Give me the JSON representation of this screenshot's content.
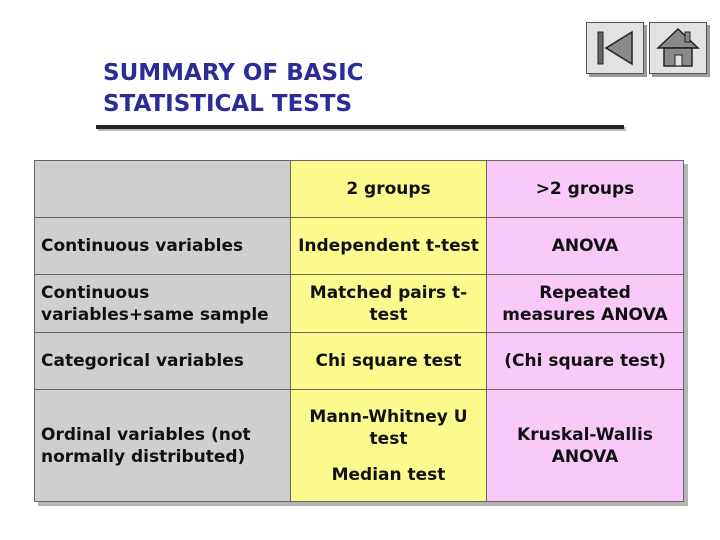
{
  "title": {
    "line1": "SUMMARY OF BASIC",
    "line2": "STATISTICAL TESTS"
  },
  "nav": {
    "back_icon": "skip-back-icon",
    "home_icon": "home-icon"
  },
  "colors": {
    "title": "#2b2b9a",
    "row_header_bg": "#cfcfcf",
    "two_groups_bg": "#fbfb8e",
    "more_groups_bg": "#f9c9f9"
  },
  "table": {
    "headers": {
      "corner": "",
      "two_groups": "2 groups",
      "more_groups": ">2 groups"
    },
    "rows": [
      {
        "label": "Continuous variables",
        "two_groups": "Independent t-test",
        "more_groups": "ANOVA"
      },
      {
        "label": "Continuous variables+same sample",
        "two_groups": "Matched pairs t-test",
        "more_groups": "Repeated measures ANOVA"
      },
      {
        "label": "Categorical variables",
        "two_groups": "Chi square test",
        "more_groups": "(Chi square test)"
      },
      {
        "label": "Ordinal variables (not normally distributed)",
        "two_groups": "Mann-Whitney U test",
        "two_groups_extra": "Median test",
        "more_groups": "Kruskal-Wallis ANOVA"
      }
    ]
  }
}
